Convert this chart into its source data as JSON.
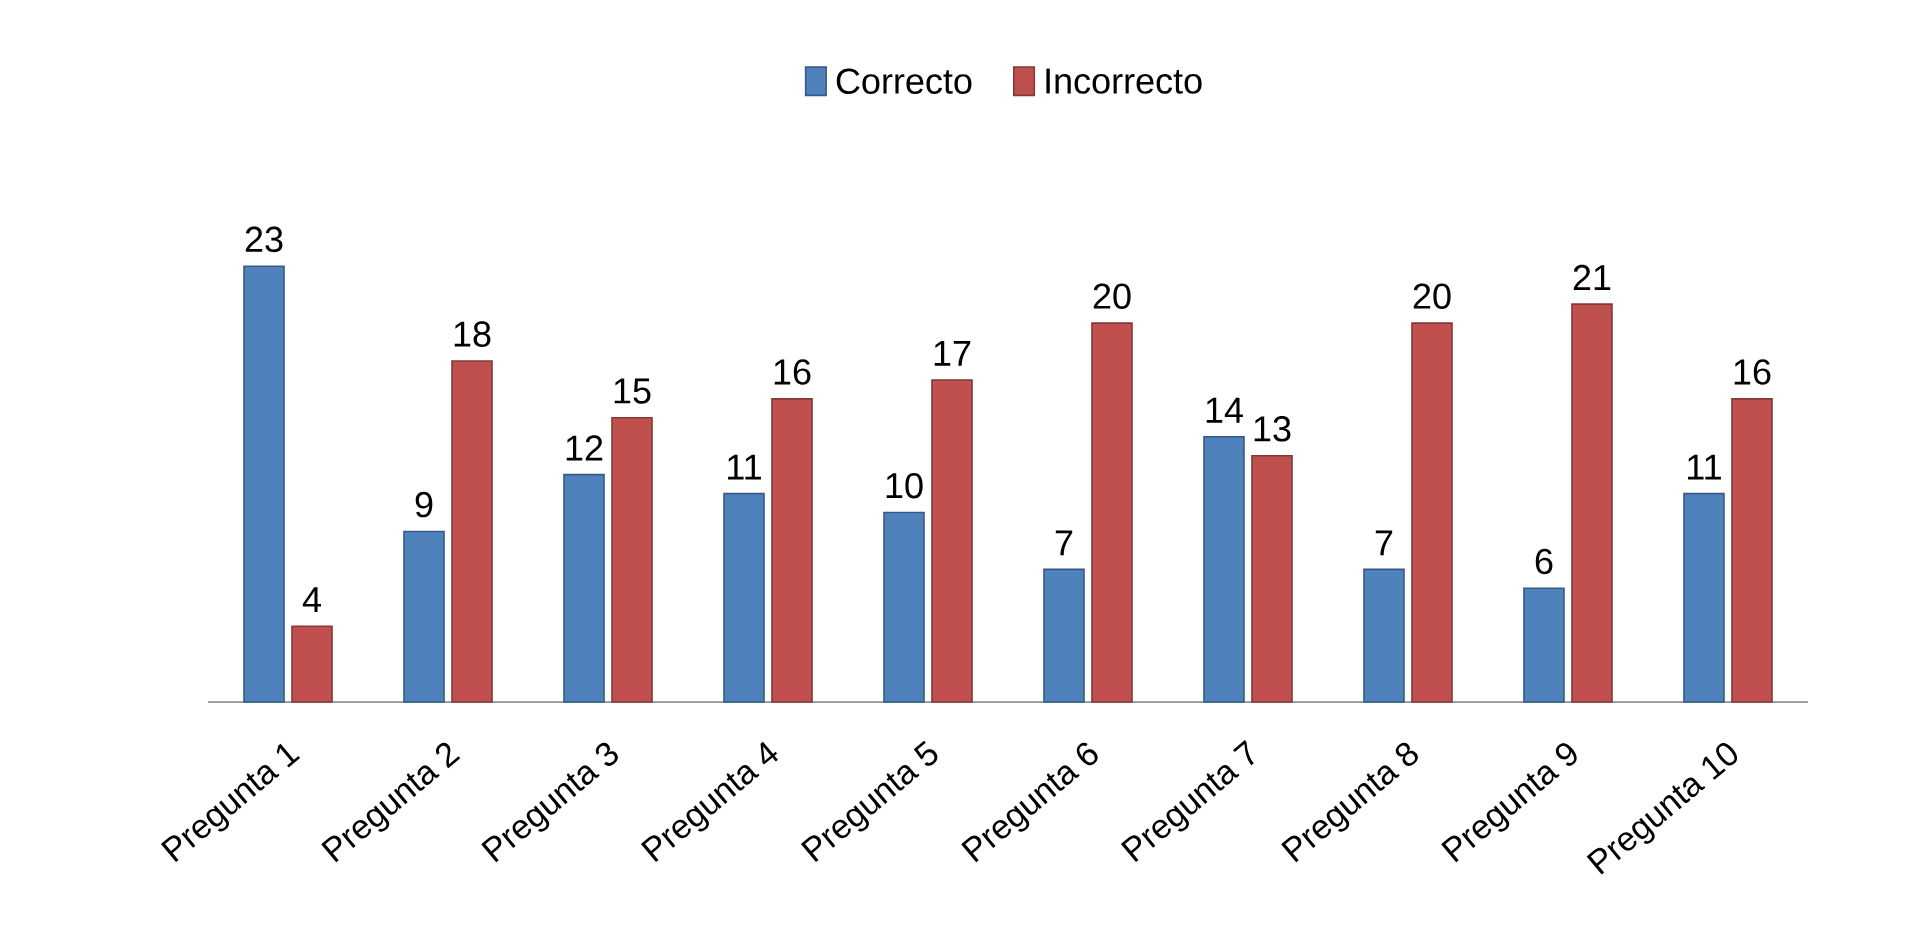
{
  "chart_data": {
    "type": "bar",
    "categories": [
      "Pregunta 1",
      "Pregunta 2",
      "Pregunta 3",
      "Pregunta 4",
      "Pregunta 5",
      "Pregunta 6",
      "Pregunta 7",
      "Pregunta 8",
      "Pregunta 9",
      "Pregunta 10"
    ],
    "series": [
      {
        "name": "Correcto",
        "color": "#4f81bd",
        "values": [
          23,
          9,
          12,
          11,
          10,
          7,
          14,
          7,
          6,
          11
        ]
      },
      {
        "name": "Incorrecto",
        "color": "#c0504d",
        "values": [
          4,
          18,
          15,
          16,
          17,
          20,
          13,
          20,
          21,
          16
        ]
      }
    ],
    "data_labels": true,
    "legend": "top"
  }
}
